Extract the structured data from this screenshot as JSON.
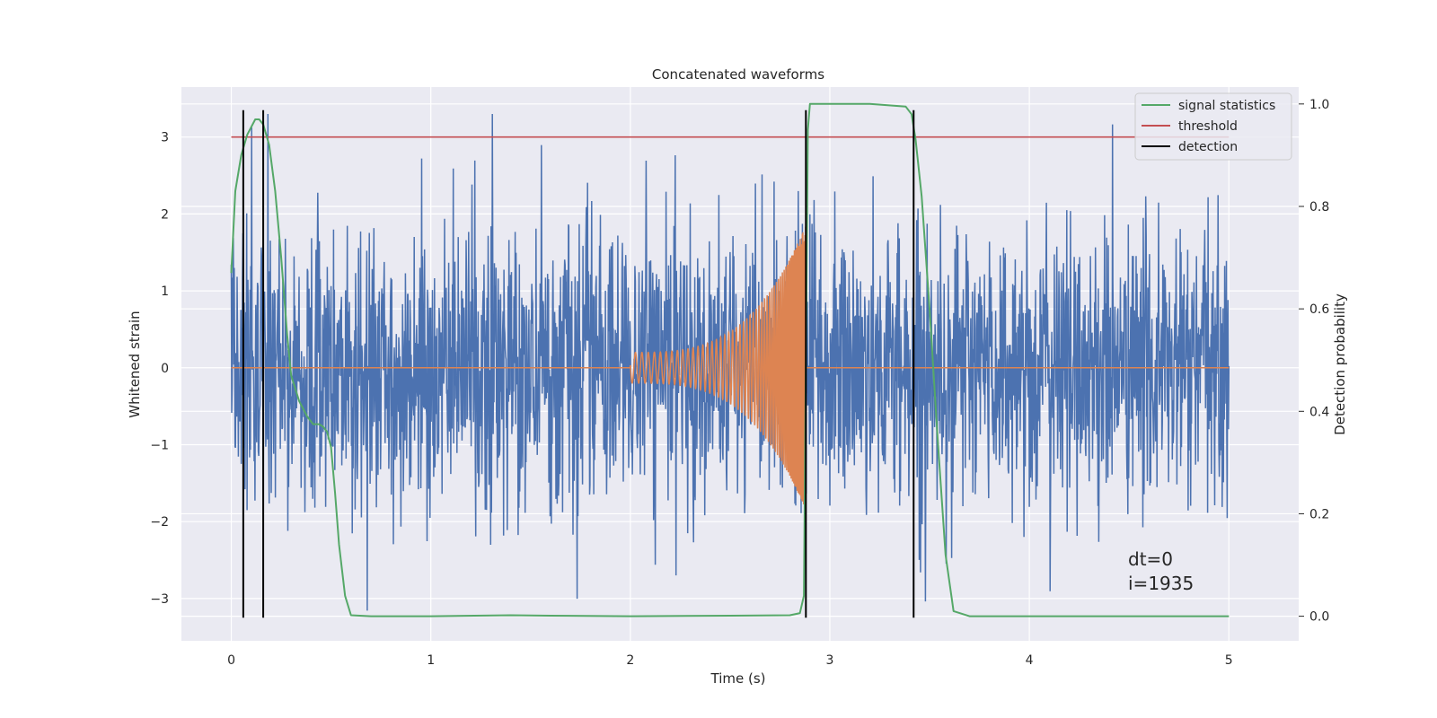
{
  "chart_data": {
    "type": "line",
    "title": "Concatenated waveforms",
    "xlabel": "Time (s)",
    "ylabel": "Whitened strain",
    "y2label": "Detection probability",
    "xlim": [
      -0.25,
      5.35
    ],
    "ylim": [
      -3.55,
      3.65
    ],
    "y2lim": [
      -0.048,
      1.033
    ],
    "xticks": [
      0,
      1,
      2,
      3,
      4,
      5
    ],
    "yticks": [
      -3,
      -2,
      -1,
      0,
      1,
      2,
      3
    ],
    "y2ticks": [
      0.0,
      0.2,
      0.4,
      0.6,
      0.8,
      1.0
    ],
    "grid": true,
    "legend_position": "top-right",
    "colors": {
      "background": "#eaeaf2",
      "grid": "#ffffff",
      "strain": "#4c72b0",
      "template": "#dd8452",
      "statistic": "#55a868",
      "threshold": "#c44e52",
      "detection": "#000000"
    },
    "series": [
      {
        "name": "",
        "key": "strain",
        "axis": "left",
        "kind": "noise",
        "x_range": [
          0,
          5
        ],
        "amplitude_rms": 0.9,
        "peak": 3.3
      },
      {
        "name": "",
        "key": "template",
        "axis": "left",
        "kind": "chirp",
        "x_range": [
          2.0,
          2.88
        ],
        "start_amplitude": 0.2,
        "end_amplitude": 1.85,
        "flat_value": 0
      },
      {
        "name": "signal statistics",
        "key": "statistic",
        "axis": "right",
        "x": [
          0.0,
          0.02,
          0.05,
          0.08,
          0.12,
          0.14,
          0.16,
          0.19,
          0.22,
          0.25,
          0.28,
          0.3,
          0.34,
          0.38,
          0.41,
          0.44,
          0.46,
          0.48,
          0.5,
          0.52,
          0.54,
          0.57,
          0.6,
          0.7,
          1.0,
          1.4,
          1.6,
          2.0,
          2.5,
          2.8,
          2.85,
          2.87,
          2.88,
          2.89,
          2.9,
          2.95,
          3.2,
          3.38,
          3.41,
          3.43,
          3.46,
          3.5,
          3.54,
          3.58,
          3.62,
          3.7,
          4.0,
          4.5,
          5.0
        ],
        "y": [
          0.67,
          0.83,
          0.9,
          0.94,
          0.97,
          0.97,
          0.96,
          0.92,
          0.83,
          0.7,
          0.55,
          0.47,
          0.42,
          0.39,
          0.375,
          0.375,
          0.37,
          0.36,
          0.33,
          0.24,
          0.14,
          0.04,
          0.002,
          0.0,
          0.0,
          0.002,
          0.001,
          0.0,
          0.001,
          0.002,
          0.006,
          0.04,
          0.5,
          0.95,
          1.0,
          1.0,
          1.0,
          0.995,
          0.98,
          0.93,
          0.82,
          0.6,
          0.35,
          0.12,
          0.01,
          0.0,
          0.0,
          0.0,
          0.0
        ]
      },
      {
        "name": "threshold",
        "key": "threshold",
        "axis": "left",
        "x": [
          0,
          5
        ],
        "y": [
          3,
          3
        ]
      },
      {
        "name": "detection",
        "key": "detection",
        "axis": "left",
        "kind": "vertical-lines",
        "x": [
          0.06,
          0.16,
          2.88,
          3.42
        ],
        "y_range": [
          -3.25,
          3.35
        ]
      }
    ],
    "annotation": {
      "line1": "dt=0",
      "line2": "i=1935",
      "x": 4.5,
      "y": -2.55
    }
  }
}
